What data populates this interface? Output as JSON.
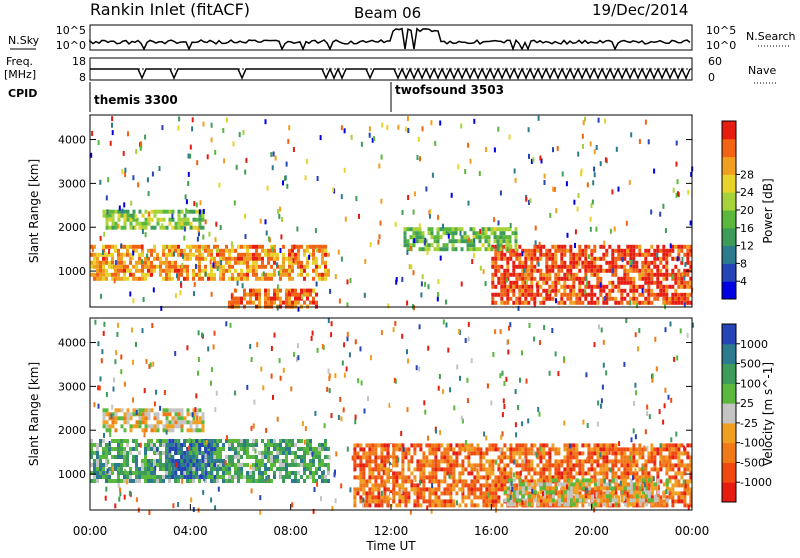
{
  "header": {
    "station": "Rankin Inlet (fitACF)",
    "beam": "Beam 06",
    "date": "19/Dec/2014"
  },
  "status_panel": {
    "nsky_label": "N.Sky",
    "nsearch_label": "N.Search",
    "freq_label_1": "Freq.",
    "freq_label_2": "[MHz]",
    "nave_label": "Nave",
    "cpid_label": "CPID",
    "noise_ticks": [
      "10^5",
      "10^0"
    ],
    "noise_ticks_right": [
      "10^5",
      "10^0"
    ],
    "freq_ticks": [
      "18",
      "8"
    ],
    "nave_ticks": [
      "60",
      "0"
    ],
    "cpid_segments": [
      {
        "name": "themis 3300",
        "start_hour": 0,
        "end_hour": 12
      },
      {
        "name": "twofsound 3503",
        "start_hour": 12,
        "end_hour": 24
      }
    ]
  },
  "chart_data": [
    {
      "type": "heatmap",
      "xlabel": "",
      "ylabel": "Slant Range [km]",
      "xlim": [
        0,
        24
      ],
      "ylim": [
        180,
        4560
      ],
      "yticks": [
        "1000",
        "2000",
        "3000",
        "4000"
      ],
      "colorbar": {
        "label": "Power [dB]",
        "ticks": [
          "4",
          "8",
          "12",
          "16",
          "20",
          "24",
          "28"
        ],
        "range": [
          0,
          30
        ],
        "colors": [
          "#0000e0",
          "#2444b8",
          "#2c7a8e",
          "#3e9c5a",
          "#5ab83c",
          "#a6d23a",
          "#e8d22c",
          "#f0a01e",
          "#f06414",
          "#e61c10"
        ]
      },
      "bands": [
        {
          "start_hour": 0.0,
          "end_hour": 9.5,
          "range_km": [
            800,
            1600
          ],
          "level": 0.8
        },
        {
          "start_hour": 5.5,
          "end_hour": 9.0,
          "range_km": [
            200,
            600
          ],
          "level": 0.9
        },
        {
          "start_hour": 0.5,
          "end_hour": 4.5,
          "range_km": [
            2000,
            2400
          ],
          "level": 0.5
        },
        {
          "start_hour": 16.0,
          "end_hour": 24.0,
          "range_km": [
            300,
            1600
          ],
          "level": 0.95
        },
        {
          "start_hour": 12.5,
          "end_hour": 17.0,
          "range_km": [
            1500,
            2000
          ],
          "level": 0.45
        }
      ]
    },
    {
      "type": "heatmap",
      "xlabel": "Time UT",
      "ylabel": "Slant Range [km]",
      "xlim": [
        0,
        24
      ],
      "ylim": [
        180,
        4560
      ],
      "xticks": [
        "00:00",
        "04:00",
        "08:00",
        "12:00",
        "16:00",
        "20:00",
        "00:00"
      ],
      "yticks": [
        "1000",
        "2000",
        "3000",
        "4000"
      ],
      "colorbar": {
        "label": "Velocity [m s^-1]",
        "ticks": [
          "1000",
          "500",
          "100",
          "25",
          "-25",
          "-100",
          "-500",
          "-1000"
        ],
        "range": [
          -1000,
          1000
        ],
        "colors": [
          "#e61c10",
          "#f04a12",
          "#f07a18",
          "#f0a020",
          "#c4c4c4",
          "#5ab83c",
          "#3e9c5a",
          "#2c7a8e",
          "#2444b8"
        ]
      },
      "bands": [
        {
          "start_hour": 0.0,
          "end_hour": 9.5,
          "range_km": [
            800,
            1800
          ],
          "level": 0.7
        },
        {
          "start_hour": 3.0,
          "end_hour": 5.0,
          "range_km": [
            900,
            1800
          ],
          "level": 0.95
        },
        {
          "start_hour": 0.5,
          "end_hour": 4.5,
          "range_km": [
            2000,
            2500
          ],
          "level": 0.45
        },
        {
          "start_hour": 10.5,
          "end_hour": 24.0,
          "range_km": [
            300,
            1700
          ],
          "level": 0.2
        },
        {
          "start_hour": 16.5,
          "end_hour": 23.0,
          "range_km": [
            300,
            900
          ],
          "level": 0.48
        }
      ]
    }
  ]
}
